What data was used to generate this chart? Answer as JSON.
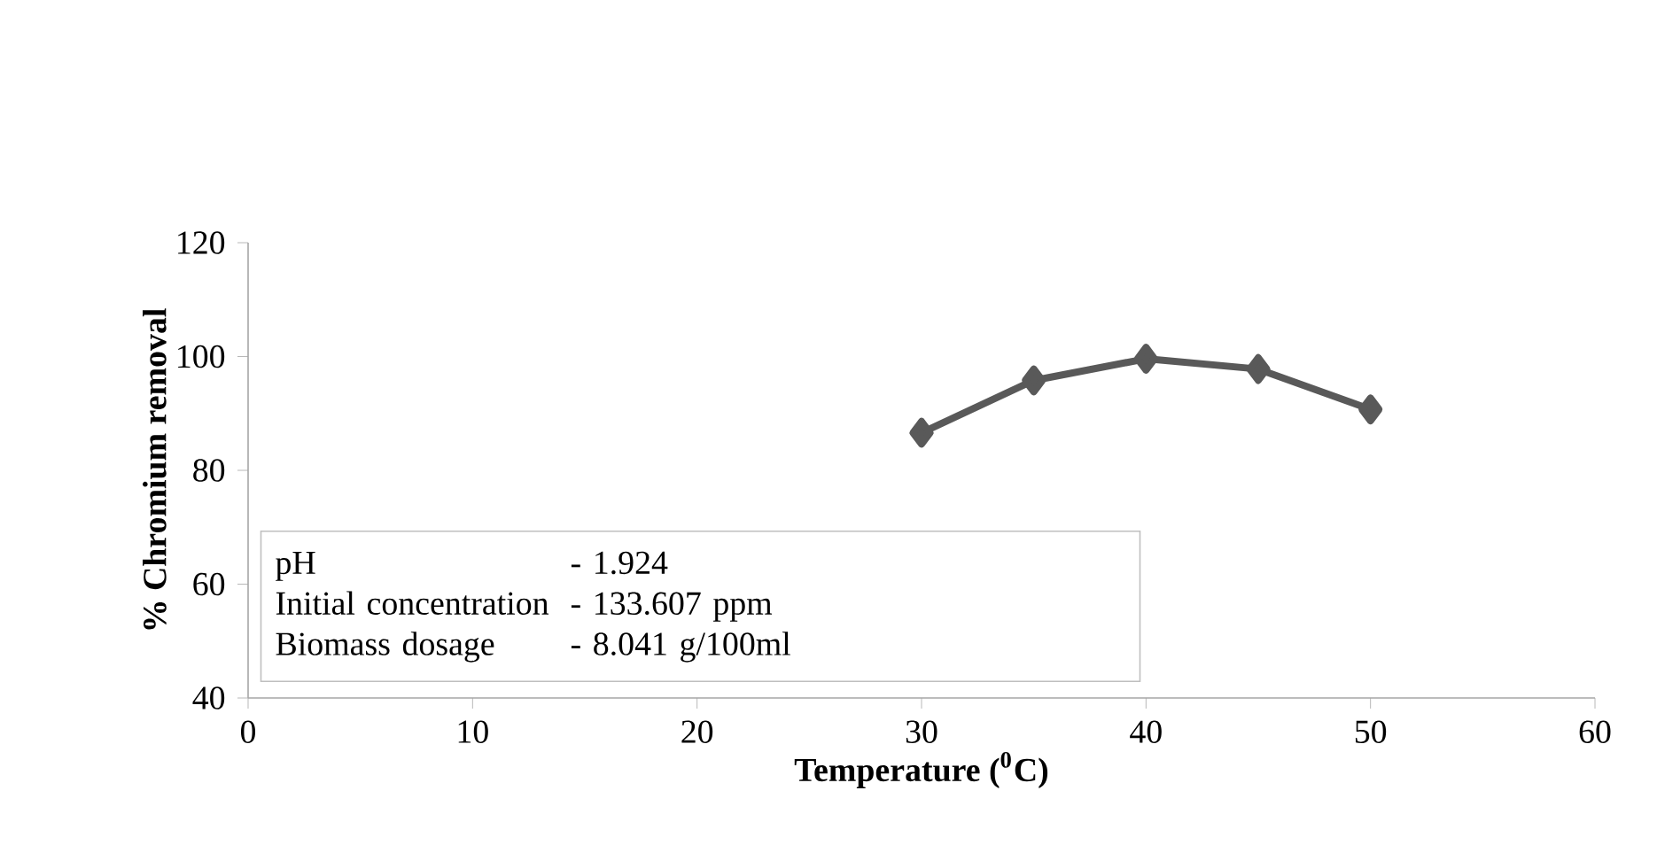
{
  "chart_data": {
    "type": "line",
    "xlabel": "**Temperature ($^{0}$C)**",
    "ylabel": "**% Chromium removal**",
    "x": [
      30,
      35,
      40,
      45,
      50
    ],
    "series": [
      {
        "color": "#595959",
        "values": [
          86.6,
          95.8,
          99.6,
          97.8,
          90.7
        ]
      }
    ],
    "marker": "diamond",
    "line_style": "solid",
    "xlim": [
      0,
      60
    ],
    "xticks": [
      0,
      10,
      20,
      30,
      40,
      50,
      60
    ],
    "ylim": [
      40,
      120
    ],
    "yticks": [
      40,
      60,
      80,
      100,
      120
    ],
    "annotations": [
      "pH",
      "- 1.924",
      "Initial concentration",
      "- 133.607 ppm",
      "Biomass dosage",
      "- 8.041 g/100ml"
    ]
  }
}
